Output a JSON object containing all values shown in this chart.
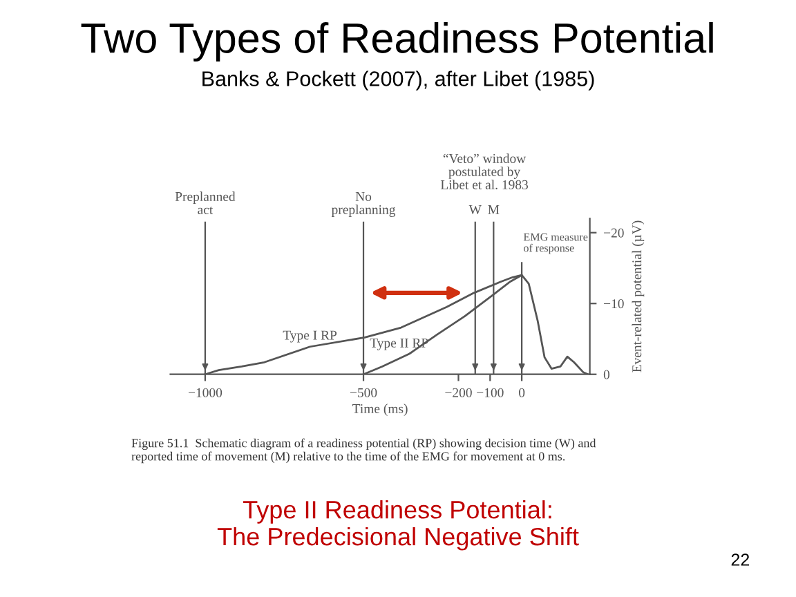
{
  "chart_data": {
    "type": "line",
    "title": "Two Types of Readiness Potential",
    "subtitle": "Banks & Pockett (2007), after Libet (1985)",
    "xlabel": "Time (ms)",
    "ylabel": "Event-related potential (µV)",
    "series": [
      {
        "name": "Type I RP",
        "color": "#555555",
        "x": [
          -1000,
          -957,
          -885,
          -813,
          -669,
          -496,
          -381,
          -237,
          -151,
          -65,
          -29,
          0,
          22,
          50,
          72,
          94,
          122,
          144,
          165,
          194,
          209
        ],
        "values": [
          0,
          -0.6,
          -1.1,
          -1.7,
          -3.9,
          -5.2,
          -6.6,
          -9.5,
          -11.5,
          -13.1,
          -13.7,
          -14,
          -12.8,
          -7.6,
          -2.4,
          -0.8,
          -1.1,
          -2.5,
          -1.7,
          -0.3,
          0
        ]
      },
      {
        "name": "Type II RP",
        "color": "#555555",
        "x": [
          -500,
          -441,
          -355,
          -268,
          -180,
          -94,
          -36,
          0
        ],
        "values": [
          0,
          -1.1,
          -2.9,
          -5.6,
          -8.2,
          -11.1,
          -13.1,
          -14
        ]
      }
    ],
    "xlim": [
      -1110,
      215
    ],
    "ylim": [
      0,
      -22
    ],
    "xticks": [
      {
        "value": -1000,
        "label": "−1000"
      },
      {
        "value": -500,
        "label": "−500"
      },
      {
        "value": -200,
        "label": "−200"
      },
      {
        "value": -100,
        "label": "−100"
      },
      0
    ],
    "yticks": [
      0,
      {
        "value": -10,
        "label": "−10"
      },
      {
        "value": -20,
        "label": "−20"
      }
    ],
    "ref_lines": [
      {
        "axis": "x",
        "value": -1000,
        "label": "Preplanned\nact"
      },
      {
        "axis": "x",
        "value": -500,
        "label": "No\npreplanning"
      },
      {
        "axis": "x",
        "value": -147,
        "label": "W"
      },
      {
        "axis": "x",
        "value": -89,
        "label": "M"
      },
      {
        "axis": "x",
        "value": 0,
        "label": "EMG measure\nof response"
      }
    ],
    "annotations": [
      "“Veto” window\npostulated by\nLibet et al. 1983",
      "Figure 51.1  Schematic diagram of a readiness potential (RP) showing decision time (W) and\nreported time of movement (M) relative to the time of the EMG for movement at 0 ms.",
      "Type II Readiness Potential:\nThe Predecisional Negative Shift",
      "22"
    ],
    "grid": false,
    "legend": false,
    "marker": "none",
    "line_style": "solid"
  }
}
